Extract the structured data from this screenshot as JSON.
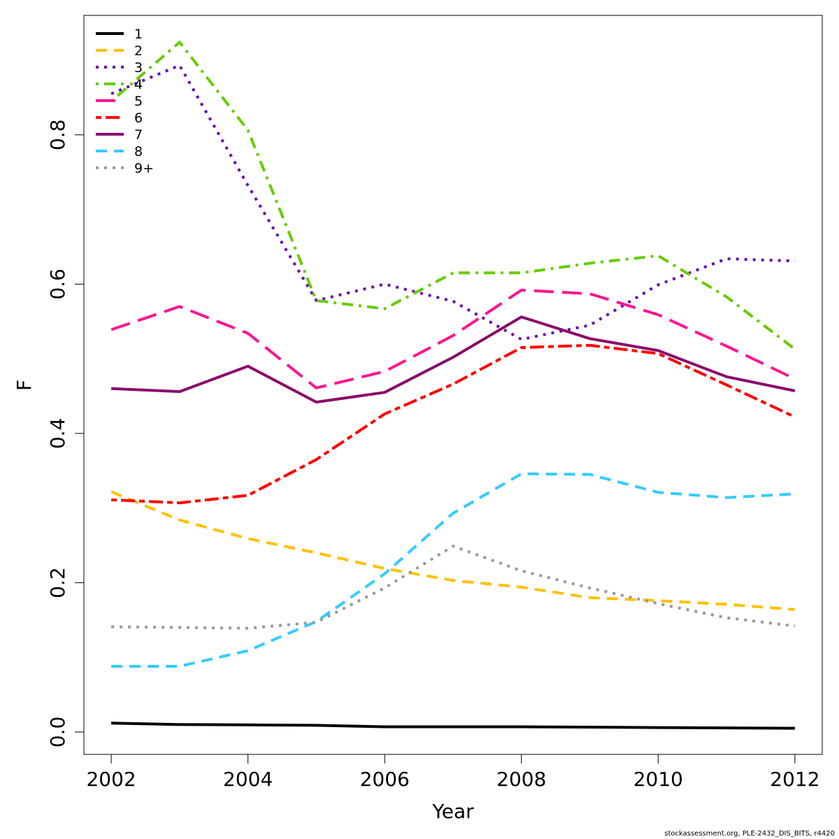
{
  "caption": "stockassessment.org, PLE-2432_DIS_BITS, r4420",
  "chart_data": {
    "type": "line",
    "xlabel": "Year",
    "ylabel": "F",
    "xlim": [
      2001.6,
      2012.4
    ],
    "ylim": [
      -0.03,
      0.96
    ],
    "x_ticks": [
      2002,
      2004,
      2006,
      2008,
      2010,
      2012
    ],
    "y_ticks": [
      0.0,
      0.2,
      0.4,
      0.6,
      0.8
    ],
    "y_tick_labels": [
      "0.0",
      "0.2",
      "0.4",
      "0.6",
      "0.8"
    ],
    "grid": false,
    "legend_position": "top-left",
    "x": [
      2002,
      2003,
      2004,
      2005,
      2006,
      2007,
      2008,
      2009,
      2010,
      2011,
      2012
    ],
    "series": [
      {
        "name": "1",
        "color": "#000000",
        "dash": "solid",
        "values": [
          0.012,
          0.01,
          0.0095,
          0.009,
          0.007,
          0.007,
          0.007,
          0.0065,
          0.006,
          0.0055,
          0.005
        ]
      },
      {
        "name": "2",
        "color": "#FFC000",
        "dash": "dashed",
        "values": [
          0.322,
          0.284,
          0.259,
          0.24,
          0.219,
          0.203,
          0.194,
          0.18,
          0.176,
          0.171,
          0.164
        ]
      },
      {
        "name": "3",
        "color": "#6A0DAD",
        "dash": "dotted",
        "values": [
          0.855,
          0.893,
          0.732,
          0.578,
          0.6,
          0.577,
          0.526,
          0.545,
          0.599,
          0.634,
          0.631
        ]
      },
      {
        "name": "4",
        "color": "#66CC00",
        "dash": "dotdash",
        "values": [
          0.845,
          0.924,
          0.806,
          0.578,
          0.567,
          0.615,
          0.615,
          0.628,
          0.638,
          0.583,
          0.513
        ]
      },
      {
        "name": "5",
        "color": "#FF1493",
        "dash": "longdash",
        "values": [
          0.539,
          0.57,
          0.534,
          0.461,
          0.483,
          0.531,
          0.592,
          0.587,
          0.559,
          0.517,
          0.473
        ]
      },
      {
        "name": "6",
        "color": "#FF0000",
        "dash": "twodash",
        "values": [
          0.311,
          0.307,
          0.317,
          0.365,
          0.426,
          0.466,
          0.515,
          0.518,
          0.507,
          0.465,
          0.422
        ]
      },
      {
        "name": "7",
        "color": "#8B0A6B",
        "dash": "solid",
        "values": [
          0.46,
          0.456,
          0.49,
          0.442,
          0.455,
          0.502,
          0.556,
          0.527,
          0.511,
          0.476,
          0.457
        ]
      },
      {
        "name": "8",
        "color": "#33CCFF",
        "dash": "dashed",
        "values": [
          0.088,
          0.088,
          0.109,
          0.148,
          0.212,
          0.293,
          0.346,
          0.345,
          0.321,
          0.314,
          0.319
        ]
      },
      {
        "name": "9+",
        "color": "#999999",
        "dash": "dotted",
        "values": [
          0.141,
          0.14,
          0.139,
          0.147,
          0.193,
          0.249,
          0.216,
          0.193,
          0.172,
          0.153,
          0.142
        ]
      }
    ]
  }
}
